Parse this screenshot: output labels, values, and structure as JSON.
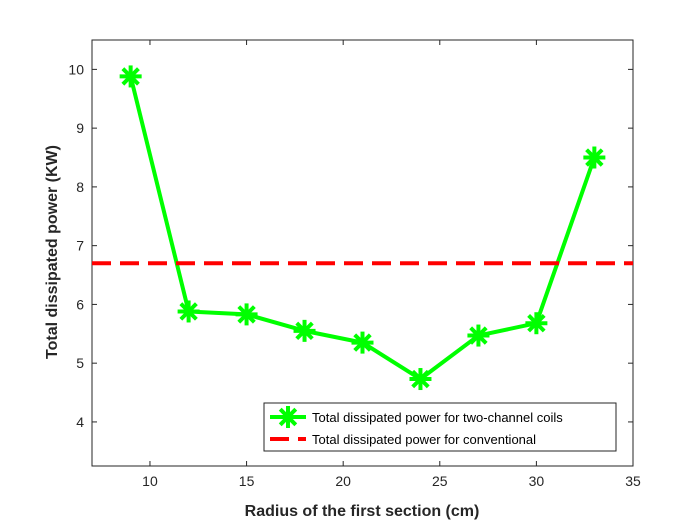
{
  "chart_data": {
    "type": "line",
    "title": "",
    "xlabel": "Radius of the first section (cm)",
    "ylabel": "Total dissipated power (KW)",
    "xlim": [
      7,
      35
    ],
    "ylim": [
      3.25,
      10.5
    ],
    "xticks": [
      10,
      15,
      20,
      25,
      30,
      35
    ],
    "yticks": [
      4,
      5,
      6,
      7,
      8,
      9,
      10
    ],
    "grid": false,
    "legend_position": "bottom-right",
    "series": [
      {
        "name": "Total dissipated  power for two-channel  coils",
        "color": "#00ff00",
        "style": "solid",
        "marker": "asterisk",
        "x": [
          9,
          12,
          15,
          18,
          21,
          24,
          27,
          30,
          33
        ],
        "y": [
          9.88,
          5.88,
          5.83,
          5.55,
          5.35,
          4.73,
          5.47,
          5.68,
          8.5
        ]
      },
      {
        "name": "Total dissipated power for conventional",
        "color": "#ff0000",
        "style": "dashed",
        "marker": "none",
        "x": [
          7,
          35
        ],
        "y": [
          6.7,
          6.7
        ]
      }
    ]
  }
}
